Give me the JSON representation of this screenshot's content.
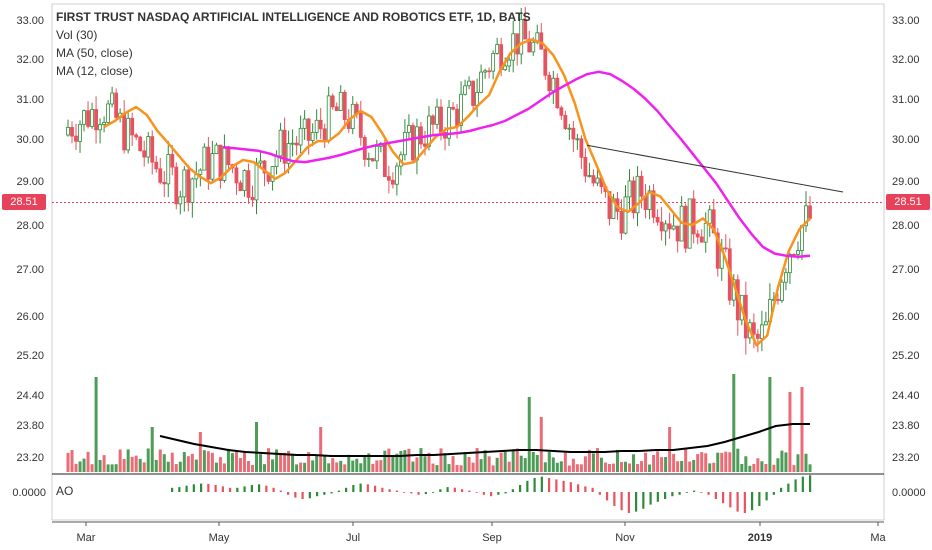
{
  "chart_data": {
    "type": "candlestick",
    "title": "FIRST TRUST NASDAQ ARTIFICIAL INTELLIGENCE AND ROBOTICS ETF, 1D, BATS",
    "indicators": [
      "Vol (30)",
      "MA (50, close)",
      "MA (12, close)"
    ],
    "last_price": "28.51",
    "price_ticks": [
      "33.00",
      "32.00",
      "31.00",
      "30.00",
      "29.00",
      "28.00",
      "27.00",
      "26.00",
      "25.20",
      "24.40",
      "23.80",
      "23.20"
    ],
    "ao_label": "AO",
    "ao_tick": "0.0000",
    "x_ticks": [
      "Mar",
      "May",
      "Jul",
      "Sep",
      "Nov",
      "2019",
      "Ma"
    ],
    "colors": {
      "up": "#2e8b3a",
      "down": "#e8525f",
      "ma12": "#f7931e",
      "ma50": "#ee22ee",
      "vol_ma": "#000000",
      "last_price": "#e8425a",
      "trendline": "#333333"
    },
    "trendline": {
      "from_price": 29.85,
      "to_price": 28.75
    },
    "ma12": [
      30.3,
      30.45,
      30.65,
      30.8,
      30.6,
      30.2,
      29.9,
      29.6,
      29.3,
      29.1,
      28.95,
      29.1,
      29.35,
      29.5,
      29.45,
      29.25,
      29.05,
      29.2,
      29.5,
      29.8,
      29.95,
      29.95,
      30.15,
      30.5,
      30.7,
      30.55,
      30.15,
      29.7,
      29.4,
      29.45,
      29.75,
      30.05,
      30.25,
      30.3,
      30.55,
      30.85,
      31.1,
      31.7,
      32.15,
      32.4,
      32.5,
      32.4,
      32.1,
      31.6,
      30.9,
      30.0,
      29.4,
      28.8,
      28.4,
      28.3,
      28.5,
      28.75,
      28.65,
      28.35,
      28.05,
      28.0,
      28.15,
      27.9,
      27.3,
      26.6,
      25.9,
      25.4,
      25.6,
      26.6,
      27.4,
      27.9,
      28.15
    ],
    "ma50": [
      29.8,
      29.78,
      29.75,
      29.72,
      29.65,
      29.55,
      29.47,
      29.45,
      29.5,
      29.55,
      29.62,
      29.7,
      29.78,
      29.85,
      29.9,
      29.95,
      30.0,
      30.05,
      30.1,
      30.12,
      30.15,
      30.2,
      30.28,
      30.35,
      30.45,
      30.6,
      30.75,
      30.95,
      31.15,
      31.32,
      31.48,
      31.62,
      31.68,
      31.62,
      31.45,
      31.25,
      31.0,
      30.7,
      30.35,
      30.0,
      29.65,
      29.3,
      28.95,
      28.55,
      28.15,
      27.8,
      27.5,
      27.35,
      27.3,
      27.28,
      27.3
    ],
    "vol_ma": [
      0.36,
      0.32,
      0.28,
      0.25,
      0.22,
      0.2,
      0.19,
      0.18,
      0.17,
      0.17,
      0.16,
      0.16,
      0.16,
      0.16,
      0.16,
      0.17,
      0.17,
      0.18,
      0.19,
      0.2,
      0.21,
      0.22,
      0.22,
      0.21,
      0.2,
      0.2,
      0.2,
      0.21,
      0.21,
      0.22,
      0.22,
      0.24,
      0.26,
      0.3,
      0.35,
      0.4,
      0.46,
      0.48,
      0.48
    ],
    "ao": [
      0.3,
      0.35,
      0.45,
      0.55,
      0.6,
      0.58,
      0.5,
      0.4,
      0.3,
      0.3,
      0.4,
      0.5,
      0.55,
      0.45,
      0.3,
      0.1,
      -0.2,
      -0.4,
      -0.5,
      -0.45,
      -0.3,
      -0.2,
      -0.1,
      0.1,
      0.3,
      0.5,
      0.6,
      0.55,
      0.45,
      0.3,
      0.2,
      0.1,
      0.0,
      -0.1,
      -0.2,
      -0.15,
      0.0,
      0.2,
      0.35,
      0.3,
      0.2,
      0.1,
      0.0,
      -0.2,
      -0.3,
      -0.2,
      -0.1,
      0.2,
      0.5,
      0.8,
      1.0,
      1.1,
      1.0,
      0.9,
      0.8,
      0.7,
      0.55,
      0.4,
      0.3,
      -0.2,
      -0.6,
      -1.0,
      -1.3,
      -1.5,
      -1.4,
      -1.2,
      -0.9,
      -0.7,
      -0.5,
      -0.3,
      -0.2,
      0.0,
      0.1,
      0.0,
      -0.2,
      -0.5,
      -0.8,
      -1.1,
      -1.4,
      -1.5,
      -1.3,
      -1.0,
      -0.6,
      -0.2,
      0.3,
      0.6,
      0.9,
      1.1,
      1.2
    ]
  }
}
